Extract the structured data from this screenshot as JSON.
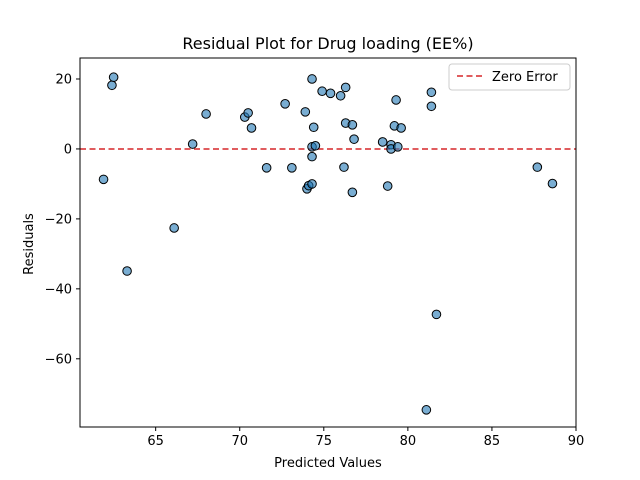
{
  "chart_data": {
    "type": "scatter",
    "title": "Residual Plot for Drug loading (EE%)",
    "xlabel": "Predicted Values",
    "ylabel": "Residuals",
    "xlim": [
      60.5,
      90
    ],
    "ylim": [
      -79.5,
      26
    ],
    "x_ticks": [
      65,
      70,
      75,
      80,
      85,
      90
    ],
    "y_ticks": [
      20,
      0,
      -20,
      -40,
      -60
    ],
    "grid": false,
    "legend_position": "top-right",
    "reference_line": {
      "label": "Zero Error",
      "y": 0,
      "color": "#d62728",
      "style": "dashed"
    },
    "point_color": "#1f77b4",
    "point_edge_color": "#000000",
    "points": [
      {
        "x": 61.9,
        "y": -8.7
      },
      {
        "x": 62.4,
        "y": 18.2
      },
      {
        "x": 62.5,
        "y": 20.5
      },
      {
        "x": 63.3,
        "y": -34.9
      },
      {
        "x": 66.1,
        "y": -22.6
      },
      {
        "x": 67.2,
        "y": 1.4
      },
      {
        "x": 68.0,
        "y": 10.0
      },
      {
        "x": 70.3,
        "y": 9.1
      },
      {
        "x": 70.5,
        "y": 10.3
      },
      {
        "x": 70.7,
        "y": 6.0
      },
      {
        "x": 71.6,
        "y": -5.4
      },
      {
        "x": 72.7,
        "y": 12.9
      },
      {
        "x": 73.1,
        "y": -5.4
      },
      {
        "x": 73.9,
        "y": 10.6
      },
      {
        "x": 74.0,
        "y": -11.4
      },
      {
        "x": 74.1,
        "y": -10.5
      },
      {
        "x": 74.3,
        "y": -10.0
      },
      {
        "x": 74.3,
        "y": 0.6
      },
      {
        "x": 74.3,
        "y": -2.2
      },
      {
        "x": 74.3,
        "y": 20.0
      },
      {
        "x": 74.4,
        "y": 6.2
      },
      {
        "x": 74.5,
        "y": 0.9
      },
      {
        "x": 74.9,
        "y": 16.5
      },
      {
        "x": 75.4,
        "y": 15.9
      },
      {
        "x": 76.0,
        "y": 15.2
      },
      {
        "x": 76.2,
        "y": -5.2
      },
      {
        "x": 76.3,
        "y": 7.4
      },
      {
        "x": 76.3,
        "y": 17.6
      },
      {
        "x": 76.7,
        "y": -12.4
      },
      {
        "x": 76.7,
        "y": 6.9
      },
      {
        "x": 76.8,
        "y": 2.8
      },
      {
        "x": 78.5,
        "y": 2.0
      },
      {
        "x": 78.8,
        "y": -10.6
      },
      {
        "x": 79.0,
        "y": 1.2
      },
      {
        "x": 79.0,
        "y": 0.0
      },
      {
        "x": 79.2,
        "y": 6.6
      },
      {
        "x": 79.3,
        "y": 14.0
      },
      {
        "x": 79.4,
        "y": 0.6
      },
      {
        "x": 79.6,
        "y": 6.0
      },
      {
        "x": 81.1,
        "y": -74.6
      },
      {
        "x": 81.4,
        "y": 16.2
      },
      {
        "x": 81.4,
        "y": 12.2
      },
      {
        "x": 81.7,
        "y": -47.3
      },
      {
        "x": 87.7,
        "y": -5.2
      },
      {
        "x": 88.6,
        "y": -9.9
      }
    ]
  }
}
